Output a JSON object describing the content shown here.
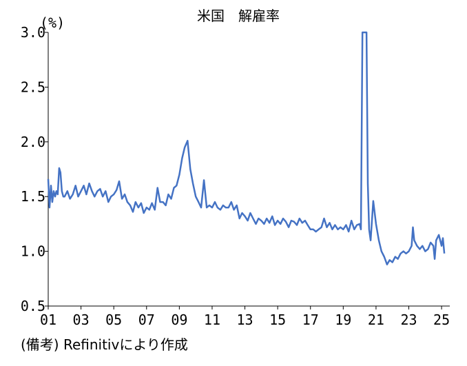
{
  "chart_data": {
    "type": "line",
    "title": "米国　解雇率",
    "ylabel": "(%)",
    "xlabel": "",
    "ylim": [
      0.5,
      3.0
    ],
    "xlim": [
      2001.0,
      2025.5
    ],
    "yticks": [
      "0.5",
      "1.0",
      "1.5",
      "2.0",
      "2.5",
      "3.0"
    ],
    "xticks": [
      "01",
      "03",
      "05",
      "07",
      "09",
      "11",
      "13",
      "15",
      "17",
      "19",
      "21",
      "23",
      "25"
    ],
    "grid": false,
    "legend": "none",
    "line_color": "#4472C4",
    "series": [
      {
        "x": [
          2001.0,
          2001.08,
          2001.17,
          2001.25,
          2001.33,
          2001.42,
          2001.5,
          2001.58,
          2001.67,
          2001.75,
          2001.83,
          2001.92,
          2002.0,
          2002.17,
          2002.33,
          2002.5,
          2002.67,
          2002.83,
          2003.0,
          2003.17,
          2003.33,
          2003.5,
          2003.67,
          2003.83,
          2004.0,
          2004.17,
          2004.33,
          2004.5,
          2004.67,
          2004.83,
          2005.0,
          2005.17,
          2005.33,
          2005.5,
          2005.67,
          2005.83,
          2006.0,
          2006.17,
          2006.33,
          2006.5,
          2006.67,
          2006.83,
          2007.0,
          2007.17,
          2007.33,
          2007.5,
          2007.67,
          2007.83,
          2008.0,
          2008.17,
          2008.33,
          2008.5,
          2008.67,
          2008.83,
          2009.0,
          2009.17,
          2009.33,
          2009.5,
          2009.67,
          2009.83,
          2010.0,
          2010.17,
          2010.33,
          2010.5,
          2010.67,
          2010.83,
          2011.0,
          2011.17,
          2011.33,
          2011.5,
          2011.67,
          2011.83,
          2012.0,
          2012.17,
          2012.33,
          2012.5,
          2012.67,
          2012.83,
          2013.0,
          2013.17,
          2013.33,
          2013.5,
          2013.67,
          2013.83,
          2014.0,
          2014.17,
          2014.33,
          2014.5,
          2014.67,
          2014.83,
          2015.0,
          2015.17,
          2015.33,
          2015.5,
          2015.67,
          2015.83,
          2016.0,
          2016.17,
          2016.33,
          2016.5,
          2016.67,
          2016.83,
          2017.0,
          2017.17,
          2017.33,
          2017.5,
          2017.67,
          2017.83,
          2018.0,
          2018.17,
          2018.33,
          2018.5,
          2018.67,
          2018.83,
          2019.0,
          2019.17,
          2019.33,
          2019.5,
          2019.67,
          2019.83,
          2020.0,
          2020.08,
          2020.17,
          2020.25,
          2020.33,
          2020.42,
          2020.5,
          2020.58,
          2020.67,
          2020.83,
          2021.0,
          2021.17,
          2021.33,
          2021.5,
          2021.67,
          2021.83,
          2022.0,
          2022.17,
          2022.33,
          2022.5,
          2022.67,
          2022.83,
          2023.0,
          2023.17,
          2023.25,
          2023.33,
          2023.5,
          2023.67,
          2023.83,
          2024.0,
          2024.17,
          2024.33,
          2024.5,
          2024.58,
          2024.67,
          2024.83,
          2025.0,
          2025.08,
          2025.17
        ],
        "y": [
          1.66,
          1.4,
          1.6,
          1.45,
          1.55,
          1.5,
          1.55,
          1.52,
          1.76,
          1.72,
          1.55,
          1.5,
          1.5,
          1.55,
          1.48,
          1.52,
          1.6,
          1.5,
          1.55,
          1.6,
          1.52,
          1.62,
          1.55,
          1.5,
          1.55,
          1.57,
          1.5,
          1.55,
          1.45,
          1.5,
          1.52,
          1.56,
          1.64,
          1.48,
          1.52,
          1.45,
          1.42,
          1.36,
          1.45,
          1.4,
          1.44,
          1.35,
          1.4,
          1.38,
          1.44,
          1.38,
          1.58,
          1.45,
          1.45,
          1.42,
          1.52,
          1.48,
          1.58,
          1.6,
          1.7,
          1.85,
          1.95,
          2.01,
          1.75,
          1.62,
          1.5,
          1.45,
          1.4,
          1.65,
          1.4,
          1.42,
          1.4,
          1.45,
          1.4,
          1.38,
          1.42,
          1.4,
          1.4,
          1.45,
          1.38,
          1.42,
          1.3,
          1.35,
          1.32,
          1.28,
          1.35,
          1.3,
          1.25,
          1.3,
          1.28,
          1.25,
          1.3,
          1.26,
          1.32,
          1.24,
          1.28,
          1.25,
          1.3,
          1.27,
          1.22,
          1.28,
          1.27,
          1.24,
          1.3,
          1.26,
          1.28,
          1.24,
          1.2,
          1.2,
          1.18,
          1.2,
          1.22,
          1.3,
          1.22,
          1.26,
          1.2,
          1.24,
          1.2,
          1.22,
          1.2,
          1.24,
          1.18,
          1.28,
          1.2,
          1.24,
          1.25,
          1.2,
          3.0,
          3.0,
          3.0,
          3.0,
          1.62,
          1.2,
          1.1,
          1.46,
          1.25,
          1.1,
          1.0,
          0.95,
          0.88,
          0.92,
          0.9,
          0.95,
          0.93,
          0.98,
          1.0,
          0.98,
          1.0,
          1.05,
          1.22,
          1.1,
          1.05,
          1.02,
          1.05,
          1.0,
          1.02,
          1.08,
          1.05,
          0.93,
          1.1,
          1.15,
          1.05,
          1.12,
          0.98
        ]
      }
    ],
    "footnote": "(備考) Refinitivにより作成"
  }
}
